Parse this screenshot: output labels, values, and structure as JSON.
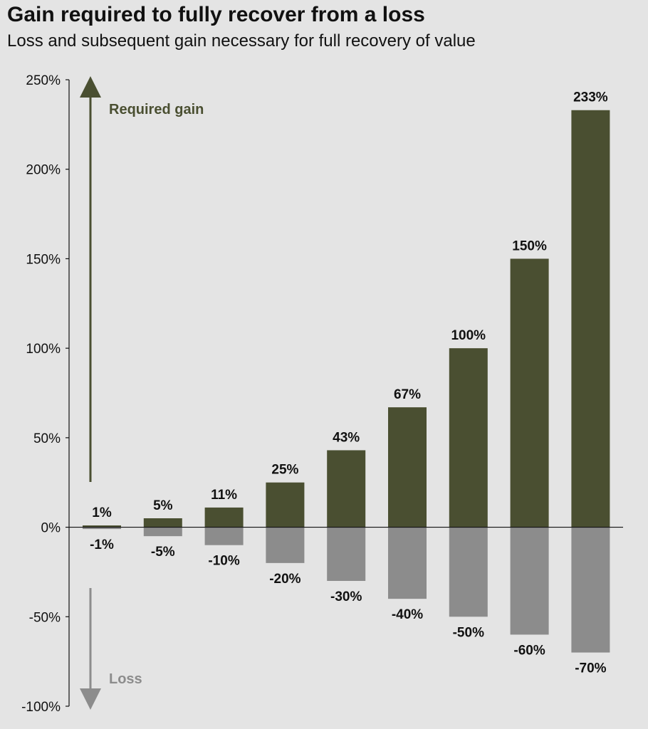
{
  "title": "Gain required to fully recover from a loss",
  "subtitle": "Loss and subsequent gain necessary for full recovery of value",
  "colors": {
    "gain": "#4a4f31",
    "loss": "#8c8c8c",
    "background": "#e4e4e4"
  },
  "annotations": {
    "gain_label": "Required gain",
    "loss_label": "Loss"
  },
  "chart_data": {
    "type": "bar",
    "title": "Gain required to fully recover from a loss",
    "subtitle": "Loss and subsequent gain necessary for full recovery of value",
    "ylim": [
      -100,
      250
    ],
    "yticks": [
      250,
      200,
      150,
      100,
      50,
      0,
      -50,
      -100
    ],
    "ytick_labels": [
      "250%",
      "200%",
      "150%",
      "100%",
      "50%",
      "0%",
      "-50%",
      "-100%"
    ],
    "grid": false,
    "series": [
      {
        "name": "Required gain",
        "values": [
          1,
          5,
          11,
          25,
          43,
          67,
          100,
          150,
          233
        ],
        "labels": [
          "1%",
          "5%",
          "11%",
          "25%",
          "43%",
          "67%",
          "100%",
          "150%",
          "233%"
        ]
      },
      {
        "name": "Loss",
        "values": [
          -1,
          -5,
          -10,
          -20,
          -30,
          -40,
          -50,
          -60,
          -70
        ],
        "labels": [
          "-1%",
          "-5%",
          "-10%",
          "-20%",
          "-30%",
          "-40%",
          "-50%",
          "-60%",
          "-70%"
        ]
      }
    ]
  }
}
